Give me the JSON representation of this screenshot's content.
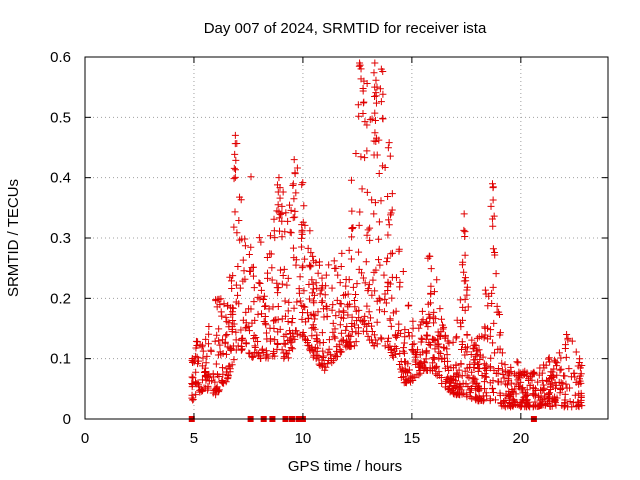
{
  "chart_data": {
    "type": "scatter",
    "title": "Day 007 of 2024, SRMTID for receiver ista",
    "xlabel": "GPS time / hours",
    "ylabel": "SRMTID / TECUs",
    "xlim": [
      0,
      24
    ],
    "ylim": [
      0,
      0.6
    ],
    "xticks": [
      0,
      5,
      10,
      15,
      20
    ],
    "yticks": [
      0,
      0.1,
      0.2,
      0.3,
      0.4,
      0.5,
      0.6
    ],
    "xtick_labels": [
      "0",
      "5",
      "10",
      "15",
      "20"
    ],
    "ytick_labels": [
      "0",
      "0.1",
      "0.2",
      "0.3",
      "0.4",
      "0.5",
      "0.6"
    ],
    "grid": true,
    "marker": "+",
    "color": "#e00000",
    "zero_points_x": [
      4.9,
      7.6,
      8.2,
      8.6,
      9.2,
      9.5,
      9.8,
      10.0,
      20.6
    ],
    "envelope": [
      {
        "x": 4.9,
        "low": 0.03,
        "high": 0.14
      },
      {
        "x": 5.5,
        "low": 0.05,
        "high": 0.15
      },
      {
        "x": 6.0,
        "low": 0.04,
        "high": 0.2
      },
      {
        "x": 6.5,
        "low": 0.06,
        "high": 0.2
      },
      {
        "x": 6.9,
        "low": 0.1,
        "high": 0.44
      },
      {
        "x": 7.3,
        "low": 0.12,
        "high": 0.35
      },
      {
        "x": 7.7,
        "low": 0.1,
        "high": 0.42
      },
      {
        "x": 8.2,
        "low": 0.1,
        "high": 0.25
      },
      {
        "x": 8.7,
        "low": 0.1,
        "high": 0.34
      },
      {
        "x": 9.0,
        "low": 0.1,
        "high": 0.39
      },
      {
        "x": 9.4,
        "low": 0.1,
        "high": 0.36
      },
      {
        "x": 9.6,
        "low": 0.12,
        "high": 0.43
      },
      {
        "x": 10.0,
        "low": 0.14,
        "high": 0.4
      },
      {
        "x": 10.5,
        "low": 0.1,
        "high": 0.28
      },
      {
        "x": 11.0,
        "low": 0.08,
        "high": 0.25
      },
      {
        "x": 11.5,
        "low": 0.1,
        "high": 0.27
      },
      {
        "x": 12.0,
        "low": 0.12,
        "high": 0.28
      },
      {
        "x": 12.4,
        "low": 0.12,
        "high": 0.5
      },
      {
        "x": 12.8,
        "low": 0.14,
        "high": 0.59
      },
      {
        "x": 13.3,
        "low": 0.12,
        "high": 0.52
      },
      {
        "x": 13.8,
        "low": 0.12,
        "high": 0.59
      },
      {
        "x": 14.2,
        "low": 0.1,
        "high": 0.32
      },
      {
        "x": 14.6,
        "low": 0.06,
        "high": 0.25
      },
      {
        "x": 15.0,
        "low": 0.06,
        "high": 0.18
      },
      {
        "x": 15.5,
        "low": 0.08,
        "high": 0.18
      },
      {
        "x": 16.0,
        "low": 0.08,
        "high": 0.27
      },
      {
        "x": 16.5,
        "low": 0.05,
        "high": 0.15
      },
      {
        "x": 17.0,
        "low": 0.04,
        "high": 0.13
      },
      {
        "x": 17.4,
        "low": 0.04,
        "high": 0.34
      },
      {
        "x": 17.8,
        "low": 0.03,
        "high": 0.12
      },
      {
        "x": 18.2,
        "low": 0.03,
        "high": 0.15
      },
      {
        "x": 18.7,
        "low": 0.03,
        "high": 0.39
      },
      {
        "x": 19.2,
        "low": 0.02,
        "high": 0.09
      },
      {
        "x": 19.7,
        "low": 0.02,
        "high": 0.1
      },
      {
        "x": 20.2,
        "low": 0.02,
        "high": 0.09
      },
      {
        "x": 20.7,
        "low": 0.02,
        "high": 0.08
      },
      {
        "x": 21.2,
        "low": 0.02,
        "high": 0.1
      },
      {
        "x": 21.7,
        "low": 0.02,
        "high": 0.11
      },
      {
        "x": 22.2,
        "low": 0.02,
        "high": 0.14
      },
      {
        "x": 22.8,
        "low": 0.02,
        "high": 0.1
      }
    ],
    "spikes": [
      {
        "x": 6.9,
        "y": 0.47
      },
      {
        "x": 8.9,
        "y": 0.4
      },
      {
        "x": 9.6,
        "y": 0.43
      },
      {
        "x": 12.6,
        "y": 0.59
      },
      {
        "x": 13.3,
        "y": 0.59
      },
      {
        "x": 13.6,
        "y": 0.58
      },
      {
        "x": 13.4,
        "y": 0.55
      },
      {
        "x": 12.8,
        "y": 0.56
      },
      {
        "x": 18.7,
        "y": 0.39
      },
      {
        "x": 17.4,
        "y": 0.34
      },
      {
        "x": 15.8,
        "y": 0.27
      },
      {
        "x": 22.1,
        "y": 0.14
      }
    ]
  }
}
